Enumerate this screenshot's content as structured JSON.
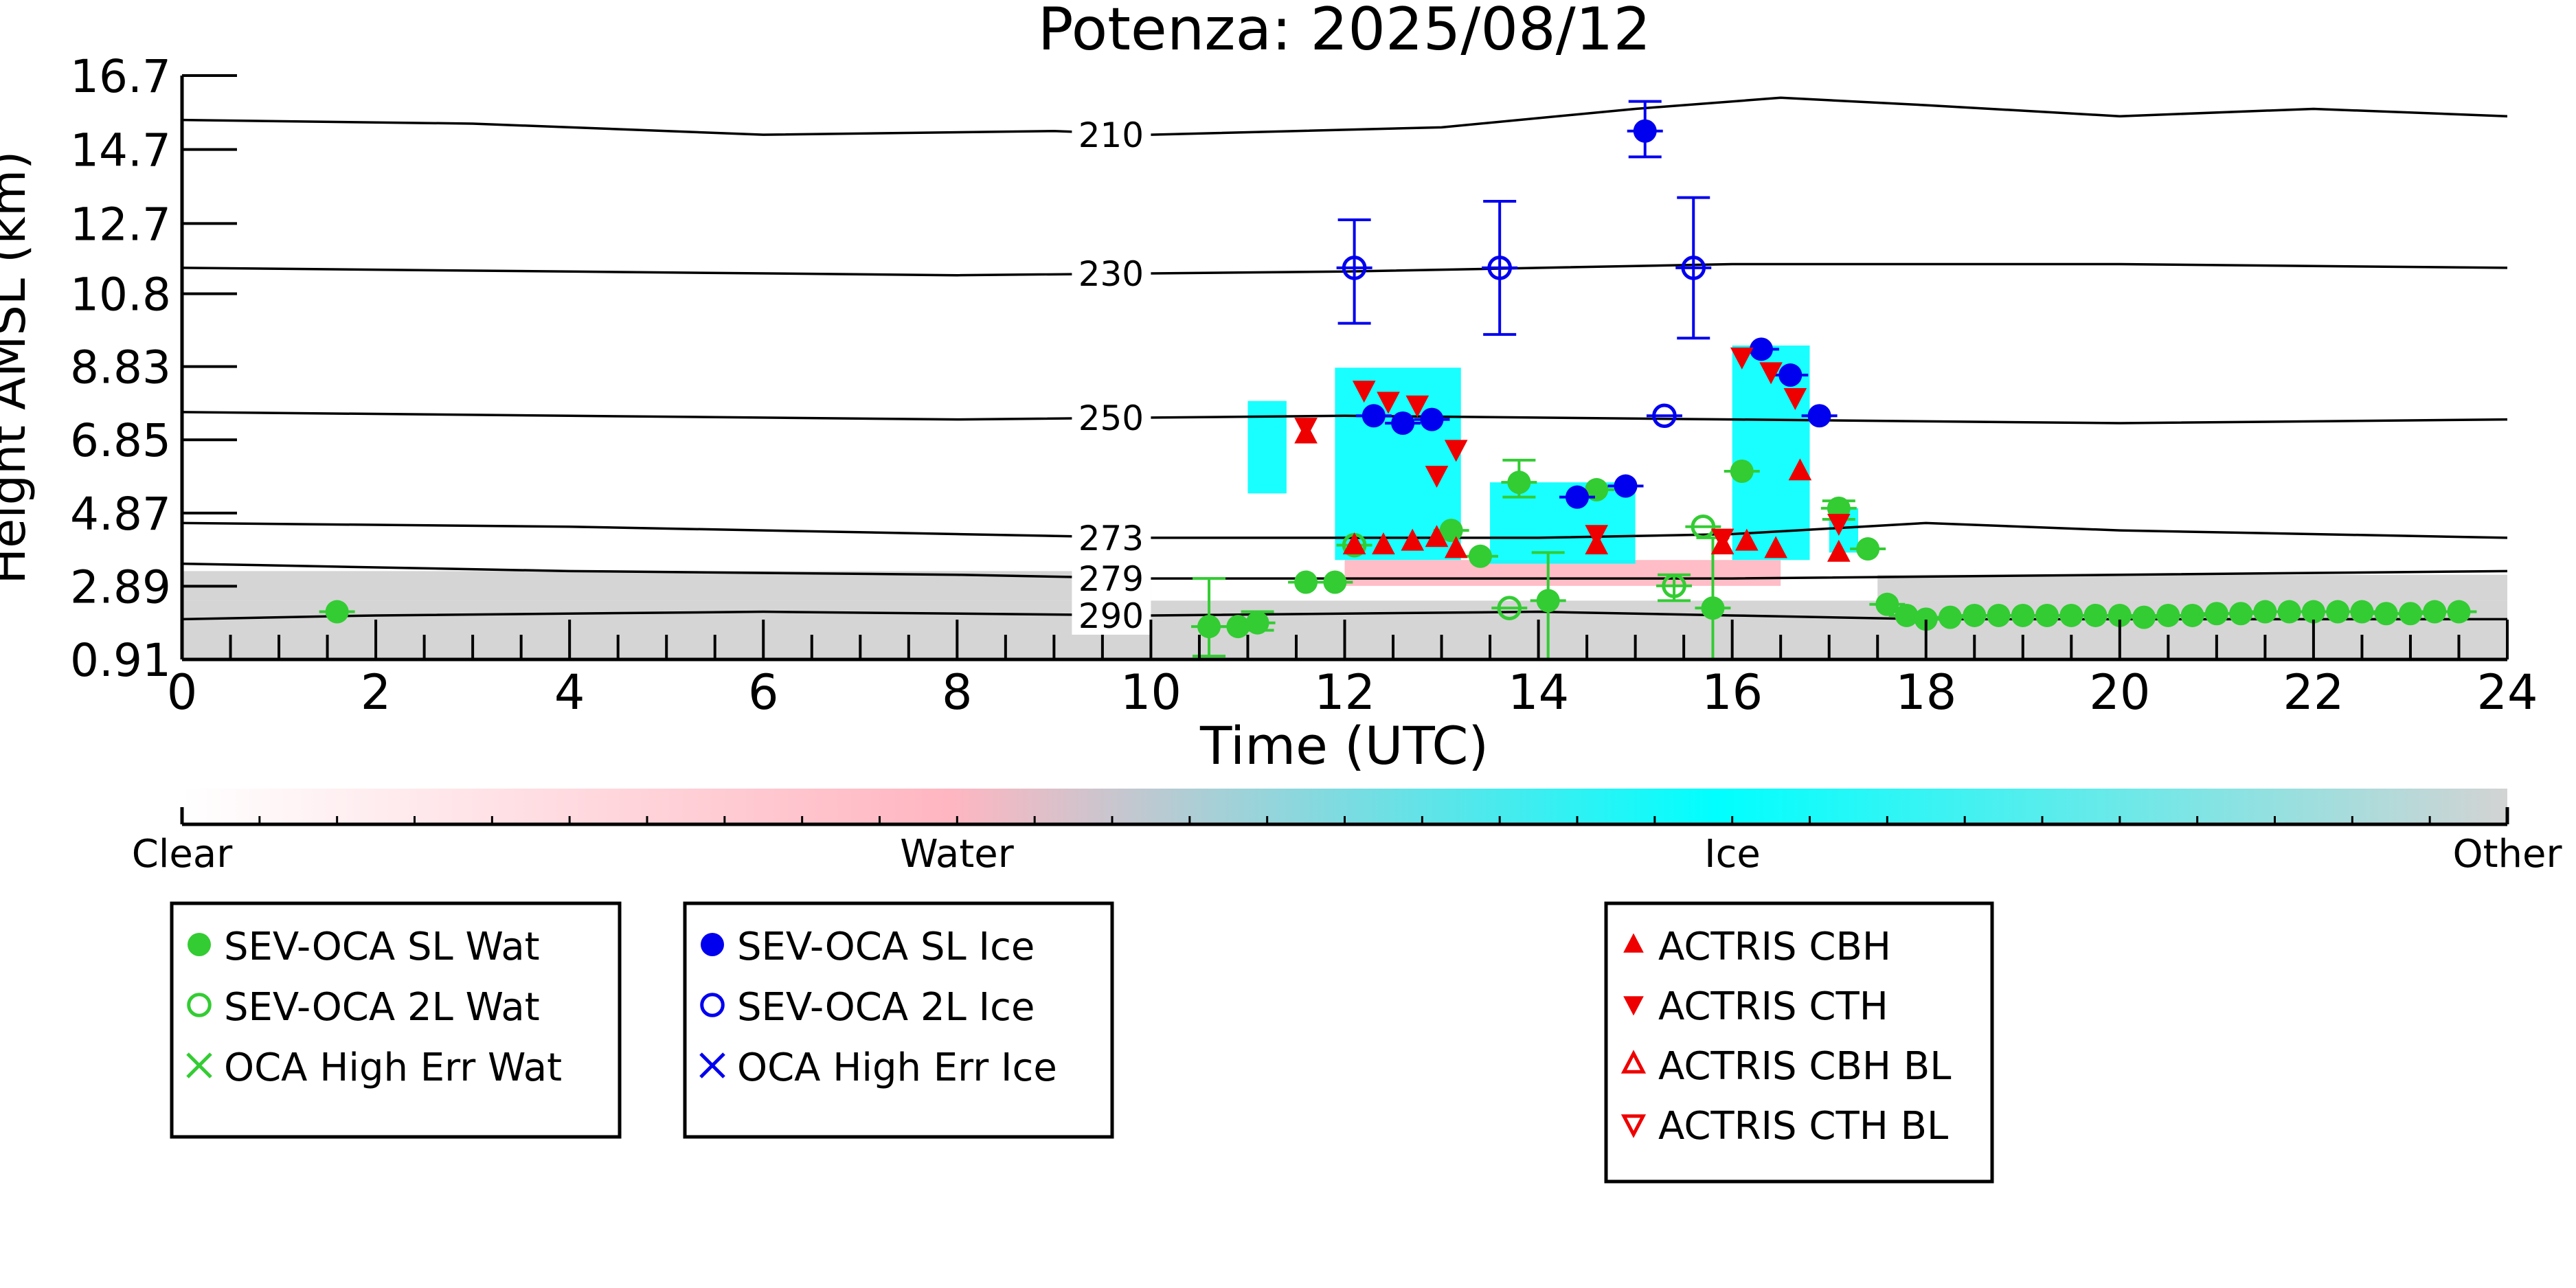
{
  "chart_data": {
    "type": "scatter",
    "title": "Potenza: 2025/08/12",
    "xlabel": "Time (UTC)",
    "ylabel": "Height AMSL (km)",
    "xlim": [
      0,
      24
    ],
    "ylim": [
      0.91,
      16.7
    ],
    "x_ticks": [
      0,
      2,
      4,
      6,
      8,
      10,
      12,
      14,
      16,
      18,
      20,
      22,
      24
    ],
    "y_ticks": [
      0.91,
      2.89,
      4.87,
      6.85,
      8.83,
      10.8,
      12.7,
      14.7,
      16.7
    ],
    "y_tick_labels": [
      "0.91",
      "2.89",
      "4.87",
      "6.85",
      "8.83",
      "10.8",
      "12.7",
      "14.7",
      "16.7"
    ],
    "isotherms": [
      {
        "label": "210",
        "x": [
          0,
          3,
          6,
          9,
          10,
          13,
          15,
          16.5,
          18,
          20,
          22,
          24
        ],
        "y": [
          15.5,
          15.4,
          15.1,
          15.2,
          15.1,
          15.3,
          15.8,
          16.1,
          15.9,
          15.6,
          15.8,
          15.6
        ]
      },
      {
        "label": "230",
        "x": [
          0,
          4,
          8,
          12,
          16,
          20,
          24
        ],
        "y": [
          11.5,
          11.4,
          11.3,
          11.4,
          11.6,
          11.6,
          11.5
        ]
      },
      {
        "label": "250",
        "x": [
          0,
          4,
          8,
          12,
          16,
          20,
          24
        ],
        "y": [
          7.6,
          7.5,
          7.4,
          7.5,
          7.4,
          7.3,
          7.4
        ]
      },
      {
        "label": "273",
        "x": [
          0,
          4,
          8,
          10,
          12,
          14,
          16,
          18,
          20,
          24
        ],
        "y": [
          4.6,
          4.5,
          4.3,
          4.2,
          4.2,
          4.2,
          4.3,
          4.6,
          4.4,
          4.2
        ]
      },
      {
        "label": "279",
        "x": [
          0,
          4,
          8,
          10,
          12,
          16,
          20,
          24
        ],
        "y": [
          3.5,
          3.3,
          3.2,
          3.1,
          3.1,
          3.1,
          3.2,
          3.3
        ]
      },
      {
        "label": "290",
        "x": [
          0,
          2,
          6,
          10,
          14,
          16,
          18,
          20,
          24
        ],
        "y": [
          2.0,
          2.1,
          2.2,
          2.1,
          2.2,
          2.1,
          2.0,
          2.0,
          2.0
        ]
      }
    ],
    "classification_bands": [
      {
        "class": "Other",
        "x": [
          0,
          24
        ],
        "y": [
          0.91,
          2.5
        ]
      },
      {
        "class": "Other",
        "x": [
          0,
          10
        ],
        "y": [
          2.5,
          3.3
        ]
      },
      {
        "class": "Other",
        "x": [
          17.5,
          24
        ],
        "y": [
          2.5,
          3.2
        ]
      },
      {
        "class": "Water",
        "x": [
          12,
          16.5
        ],
        "y": [
          2.9,
          3.6
        ]
      },
      {
        "class": "Ice",
        "x": [
          11.0,
          11.4
        ],
        "y": [
          5.4,
          7.9
        ]
      },
      {
        "class": "Ice",
        "x": [
          11.9,
          13.2
        ],
        "y": [
          3.6,
          8.8
        ]
      },
      {
        "class": "Ice",
        "x": [
          13.5,
          15.0
        ],
        "y": [
          3.5,
          5.7
        ]
      },
      {
        "class": "Ice",
        "x": [
          16.0,
          16.8
        ],
        "y": [
          3.6,
          9.4
        ]
      },
      {
        "class": "Ice",
        "x": [
          17.0,
          17.3
        ],
        "y": [
          3.8,
          5.0
        ]
      }
    ],
    "series": [
      {
        "name": "SEV-OCA SL Wat",
        "marker": "filled-circle",
        "color": "#33cc33",
        "points": [
          [
            1.6,
            2.2
          ],
          [
            10.6,
            1.8
          ],
          [
            10.9,
            1.8
          ],
          [
            11.1,
            1.9
          ],
          [
            11.6,
            3.0
          ],
          [
            11.9,
            3.0
          ],
          [
            13.1,
            4.4
          ],
          [
            13.4,
            3.7
          ],
          [
            13.8,
            5.7
          ],
          [
            14.1,
            2.5
          ],
          [
            14.6,
            5.5
          ],
          [
            15.8,
            2.3
          ],
          [
            16.1,
            6.0
          ],
          [
            17.1,
            5.0
          ],
          [
            17.4,
            3.9
          ],
          [
            17.6,
            2.4
          ],
          [
            17.8,
            2.1
          ],
          [
            18.0,
            2.0
          ],
          [
            18.25,
            2.05
          ],
          [
            18.5,
            2.1
          ],
          [
            18.75,
            2.1
          ],
          [
            19.0,
            2.1
          ],
          [
            19.25,
            2.1
          ],
          [
            19.5,
            2.1
          ],
          [
            19.75,
            2.1
          ],
          [
            20.0,
            2.1
          ],
          [
            20.25,
            2.05
          ],
          [
            20.5,
            2.1
          ],
          [
            20.75,
            2.1
          ],
          [
            21.0,
            2.15
          ],
          [
            21.25,
            2.15
          ],
          [
            21.5,
            2.2
          ],
          [
            21.75,
            2.2
          ],
          [
            22.0,
            2.2
          ],
          [
            22.25,
            2.2
          ],
          [
            22.5,
            2.2
          ],
          [
            22.75,
            2.15
          ],
          [
            23.0,
            2.15
          ],
          [
            23.25,
            2.2
          ],
          [
            23.5,
            2.2
          ]
        ],
        "errors": [
          [
            10.6,
            1.0,
            3.1
          ],
          [
            11.1,
            1.7,
            2.2
          ],
          [
            13.8,
            5.3,
            6.3
          ],
          [
            14.1,
            0.91,
            3.8
          ],
          [
            15.8,
            0.91,
            4.2
          ],
          [
            17.1,
            4.7,
            5.2
          ]
        ]
      },
      {
        "name": "SEV-OCA 2L Wat",
        "marker": "open-circle",
        "color": "#33cc33",
        "points": [
          [
            12.1,
            4.0
          ],
          [
            13.7,
            2.3
          ],
          [
            15.4,
            2.9
          ],
          [
            15.7,
            4.5
          ]
        ],
        "errors": [
          [
            15.4,
            2.5,
            3.2
          ]
        ]
      },
      {
        "name": "OCA High Err Wat",
        "marker": "x",
        "color": "#33cc33",
        "points": []
      },
      {
        "name": "SEV-OCA SL Ice",
        "marker": "filled-circle",
        "color": "#0000ee",
        "points": [
          [
            12.3,
            7.5
          ],
          [
            12.6,
            7.3
          ],
          [
            12.9,
            7.4
          ],
          [
            14.4,
            5.3
          ],
          [
            14.9,
            5.6
          ],
          [
            15.1,
            15.2
          ],
          [
            16.3,
            9.3
          ],
          [
            16.6,
            8.6
          ],
          [
            16.9,
            7.5
          ]
        ],
        "errors": [
          [
            15.1,
            14.5,
            16.0
          ]
        ]
      },
      {
        "name": "SEV-OCA 2L Ice",
        "marker": "open-circle",
        "color": "#0000ee",
        "points": [
          [
            12.1,
            11.5
          ],
          [
            13.6,
            11.5
          ],
          [
            15.6,
            11.5
          ],
          [
            15.3,
            7.5
          ]
        ],
        "errors": [
          [
            12.1,
            10.0,
            12.8
          ],
          [
            13.6,
            9.7,
            13.3
          ],
          [
            15.6,
            9.6,
            13.4
          ]
        ]
      },
      {
        "name": "OCA High Err Ice",
        "marker": "x",
        "color": "#0000ee",
        "points": []
      },
      {
        "name": "ACTRIS CBH",
        "marker": "triangle-up",
        "color": "#ee0000",
        "points": [
          [
            11.6,
            7.0
          ],
          [
            12.1,
            4.0
          ],
          [
            12.4,
            4.0
          ],
          [
            12.7,
            4.1
          ],
          [
            12.95,
            4.2
          ],
          [
            13.15,
            3.9
          ],
          [
            14.6,
            4.0
          ],
          [
            15.9,
            4.0
          ],
          [
            16.15,
            4.1
          ],
          [
            16.45,
            3.9
          ],
          [
            16.7,
            6.0
          ],
          [
            17.1,
            3.8
          ]
        ]
      },
      {
        "name": "ACTRIS CTH",
        "marker": "triangle-down",
        "color": "#ee0000",
        "points": [
          [
            11.6,
            7.2
          ],
          [
            12.2,
            8.2
          ],
          [
            12.45,
            7.9
          ],
          [
            12.75,
            7.8
          ],
          [
            12.95,
            5.9
          ],
          [
            13.15,
            6.6
          ],
          [
            14.6,
            4.3
          ],
          [
            15.9,
            4.2
          ],
          [
            16.1,
            9.1
          ],
          [
            16.4,
            8.7
          ],
          [
            16.65,
            8.0
          ],
          [
            17.1,
            4.6
          ]
        ]
      },
      {
        "name": "ACTRIS CBH BL",
        "marker": "open-triangle-up",
        "color": "#ee0000",
        "points": []
      },
      {
        "name": "ACTRIS CTH BL",
        "marker": "open-triangle-down",
        "color": "#ee0000",
        "points": []
      }
    ],
    "colorbar": {
      "labels": [
        "Clear",
        "Water",
        "Ice",
        "Other"
      ],
      "colors": [
        "#ffffff",
        "#ffb6c1",
        "#00ffff",
        "#d3d3d3"
      ]
    },
    "legends": [
      [
        "SEV-OCA SL Wat",
        "SEV-OCA 2L Wat",
        "OCA High Err Wat"
      ],
      [
        "SEV-OCA SL Ice",
        "SEV-OCA 2L Ice",
        "OCA High Err Ice"
      ],
      [
        "ACTRIS CBH",
        "ACTRIS CTH",
        "ACTRIS CBH BL",
        "ACTRIS CTH BL"
      ]
    ],
    "grid": false
  }
}
